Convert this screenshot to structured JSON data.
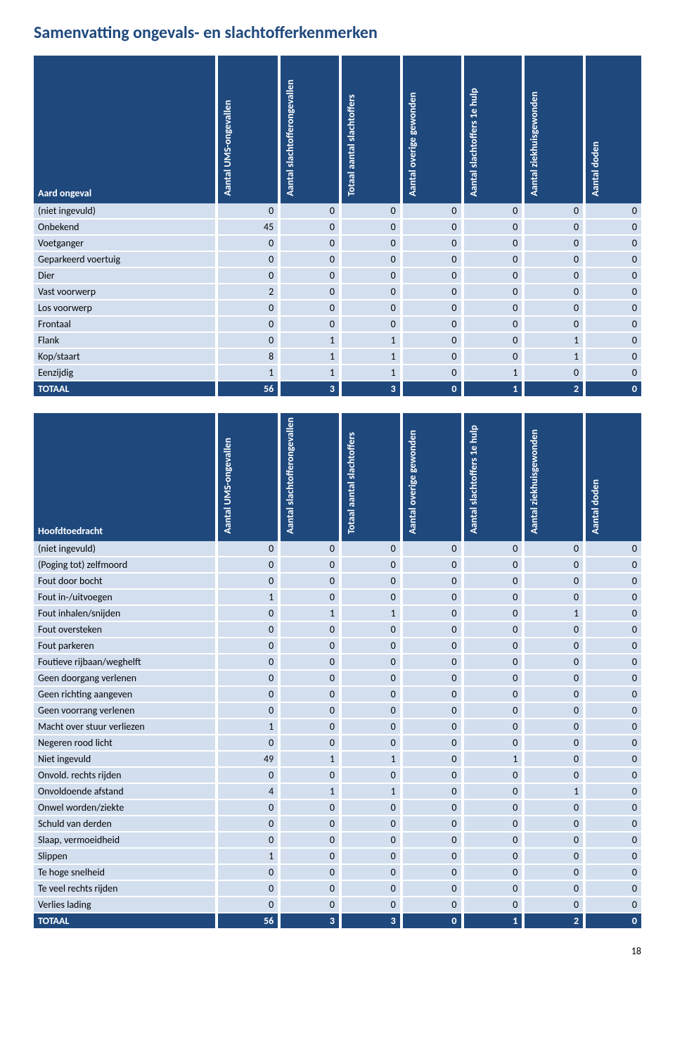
{
  "page_title": "Samenvatting ongevals- en slachtofferkenmerken",
  "page_number": "18",
  "colors": {
    "header_bg": "#1f497d",
    "header_text": "#ffffff",
    "cell_bg": "#d3dfee",
    "title_color": "#1f497d"
  },
  "column_headers": [
    "Aantal UMS-ongevallen",
    "Aantal slachtofferongevallen",
    "Totaal aantal slachtoffers",
    "Aantal overige gewonden",
    "Aantal slachtoffers 1e hulp",
    "Aantal ziekhuisgewonden",
    "Aantal doden"
  ],
  "table1": {
    "row_label_header": "Aard ongeval",
    "rows": [
      {
        "label": "(niet ingevuld)",
        "v": [
          0,
          0,
          0,
          0,
          0,
          0,
          0
        ]
      },
      {
        "label": "Onbekend",
        "v": [
          45,
          0,
          0,
          0,
          0,
          0,
          0
        ]
      },
      {
        "label": "Voetganger",
        "v": [
          0,
          0,
          0,
          0,
          0,
          0,
          0
        ]
      },
      {
        "label": "Geparkeerd voertuig",
        "v": [
          0,
          0,
          0,
          0,
          0,
          0,
          0
        ]
      },
      {
        "label": "Dier",
        "v": [
          0,
          0,
          0,
          0,
          0,
          0,
          0
        ]
      },
      {
        "label": "Vast voorwerp",
        "v": [
          2,
          0,
          0,
          0,
          0,
          0,
          0
        ]
      },
      {
        "label": "Los voorwerp",
        "v": [
          0,
          0,
          0,
          0,
          0,
          0,
          0
        ]
      },
      {
        "label": "Frontaal",
        "v": [
          0,
          0,
          0,
          0,
          0,
          0,
          0
        ]
      },
      {
        "label": "Flank",
        "v": [
          0,
          1,
          1,
          0,
          0,
          1,
          0
        ]
      },
      {
        "label": "Kop/staart",
        "v": [
          8,
          1,
          1,
          0,
          0,
          1,
          0
        ]
      },
      {
        "label": "Eenzijdig",
        "v": [
          1,
          1,
          1,
          0,
          1,
          0,
          0
        ]
      }
    ],
    "total": {
      "label": "TOTAAL",
      "v": [
        56,
        3,
        3,
        0,
        1,
        2,
        0
      ]
    }
  },
  "table2": {
    "row_label_header": "Hoofdtoedracht",
    "rows": [
      {
        "label": "(niet ingevuld)",
        "v": [
          0,
          0,
          0,
          0,
          0,
          0,
          0
        ]
      },
      {
        "label": "(Poging tot) zelfmoord",
        "v": [
          0,
          0,
          0,
          0,
          0,
          0,
          0
        ]
      },
      {
        "label": "Fout door bocht",
        "v": [
          0,
          0,
          0,
          0,
          0,
          0,
          0
        ]
      },
      {
        "label": "Fout in-/uitvoegen",
        "v": [
          1,
          0,
          0,
          0,
          0,
          0,
          0
        ]
      },
      {
        "label": "Fout inhalen/snijden",
        "v": [
          0,
          1,
          1,
          0,
          0,
          1,
          0
        ]
      },
      {
        "label": "Fout oversteken",
        "v": [
          0,
          0,
          0,
          0,
          0,
          0,
          0
        ]
      },
      {
        "label": "Fout parkeren",
        "v": [
          0,
          0,
          0,
          0,
          0,
          0,
          0
        ]
      },
      {
        "label": "Foutieve rijbaan/weghelft",
        "v": [
          0,
          0,
          0,
          0,
          0,
          0,
          0
        ]
      },
      {
        "label": "Geen doorgang verlenen",
        "v": [
          0,
          0,
          0,
          0,
          0,
          0,
          0
        ]
      },
      {
        "label": "Geen richting aangeven",
        "v": [
          0,
          0,
          0,
          0,
          0,
          0,
          0
        ]
      },
      {
        "label": "Geen voorrang verlenen",
        "v": [
          0,
          0,
          0,
          0,
          0,
          0,
          0
        ]
      },
      {
        "label": "Macht over stuur verliezen",
        "v": [
          1,
          0,
          0,
          0,
          0,
          0,
          0
        ]
      },
      {
        "label": "Negeren rood licht",
        "v": [
          0,
          0,
          0,
          0,
          0,
          0,
          0
        ]
      },
      {
        "label": "Niet ingevuld",
        "v": [
          49,
          1,
          1,
          0,
          1,
          0,
          0
        ]
      },
      {
        "label": "Onvold. rechts rijden",
        "v": [
          0,
          0,
          0,
          0,
          0,
          0,
          0
        ]
      },
      {
        "label": "Onvoldoende afstand",
        "v": [
          4,
          1,
          1,
          0,
          0,
          1,
          0
        ]
      },
      {
        "label": "Onwel worden/ziekte",
        "v": [
          0,
          0,
          0,
          0,
          0,
          0,
          0
        ]
      },
      {
        "label": "Schuld van derden",
        "v": [
          0,
          0,
          0,
          0,
          0,
          0,
          0
        ]
      },
      {
        "label": "Slaap, vermoeidheid",
        "v": [
          0,
          0,
          0,
          0,
          0,
          0,
          0
        ]
      },
      {
        "label": "Slippen",
        "v": [
          1,
          0,
          0,
          0,
          0,
          0,
          0
        ]
      },
      {
        "label": "Te hoge snelheid",
        "v": [
          0,
          0,
          0,
          0,
          0,
          0,
          0
        ]
      },
      {
        "label": "Te veel rechts rijden",
        "v": [
          0,
          0,
          0,
          0,
          0,
          0,
          0
        ]
      },
      {
        "label": "Verlies lading",
        "v": [
          0,
          0,
          0,
          0,
          0,
          0,
          0
        ]
      }
    ],
    "total": {
      "label": "TOTAAL",
      "v": [
        56,
        3,
        3,
        0,
        1,
        2,
        0
      ]
    }
  }
}
